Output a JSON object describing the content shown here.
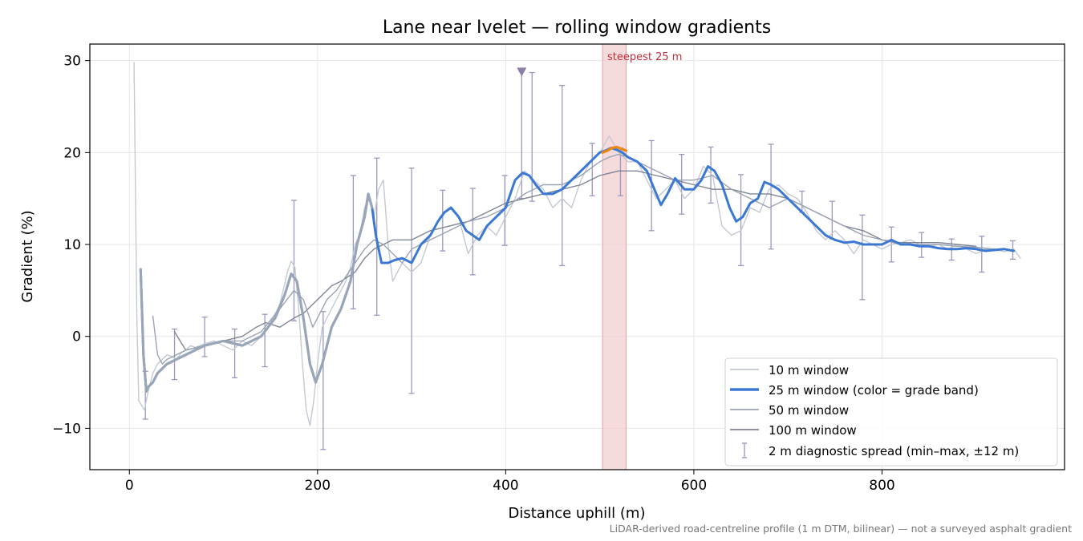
{
  "chart_data": {
    "type": "line",
    "title": "Lane near Ivelet — rolling window gradients",
    "xlabel": "Distance uphill (m)",
    "ylabel": "Gradient (%)",
    "xlim": [
      -42,
      994
    ],
    "ylim": [
      -14.5,
      31.8
    ],
    "xticks": [
      0,
      200,
      400,
      600,
      800
    ],
    "yticks": [
      -10,
      0,
      10,
      20,
      30
    ],
    "ytick_labels": [
      "−10",
      "0",
      "10",
      "20",
      "30"
    ],
    "grid": true,
    "legend_position": "lower right",
    "footnote": "LiDAR-derived road-centreline profile (1 m DTM, bilinear) — not a surveyed asphalt gradient",
    "annotation": {
      "text": "steepest 25 m",
      "x_start": 503,
      "x_end": 528
    },
    "colors": {
      "w10": "#c3c9d3",
      "w25": "#3a78d3",
      "w25_steepest": "#e8880f",
      "w50": "#9ba3b3",
      "w100": "#7e8594",
      "errorbar": "#9b98bd",
      "span": "#f2cccf",
      "annotation": "#c0303a",
      "marker": "#8e7fa6",
      "footnote": "#777777"
    },
    "series": [
      {
        "name": "10 m window",
        "x": [
          5,
          8,
          10,
          13,
          16,
          20,
          25,
          30,
          35,
          40,
          45,
          50,
          55,
          60,
          65,
          70,
          80,
          90,
          100,
          110,
          120,
          130,
          140,
          150,
          160,
          168,
          172,
          176,
          180,
          184,
          188,
          192,
          196,
          200,
          205,
          210,
          220,
          230,
          235,
          240,
          245,
          250,
          255,
          260,
          265,
          270,
          275,
          280,
          290,
          300,
          310,
          320,
          330,
          340,
          350,
          360,
          370,
          380,
          390,
          400,
          410,
          420,
          430,
          440,
          450,
          460,
          470,
          480,
          490,
          500,
          510,
          520,
          530,
          540,
          550,
          560,
          570,
          580,
          590,
          600,
          610,
          620,
          630,
          640,
          650,
          660,
          670,
          680,
          690,
          700,
          710,
          720,
          730,
          740,
          750,
          760,
          770,
          780,
          790,
          800,
          810,
          820,
          830,
          840,
          850,
          860,
          870,
          880,
          890,
          900,
          910,
          920,
          930,
          940,
          947
        ],
        "y": [
          29.8,
          2,
          -7,
          -7.5,
          -8,
          -6,
          -4,
          -3,
          -2.5,
          -2,
          -2.2,
          -2.5,
          -1.8,
          -1.5,
          -1,
          -1.2,
          -0.8,
          -0.5,
          -1,
          -1.5,
          -0.5,
          -1,
          0,
          1.5,
          3.5,
          7,
          8.2,
          7.5,
          3,
          -3,
          -8,
          -9.7,
          -7,
          -3,
          1,
          2,
          4,
          6,
          7.5,
          10,
          11,
          14,
          15,
          13,
          16,
          17,
          10,
          6,
          8,
          7,
          8,
          11,
          13,
          14,
          13,
          9,
          11,
          12,
          11,
          13,
          15,
          18,
          17,
          16,
          14,
          15,
          14,
          17,
          19,
          20,
          21.8,
          20,
          19,
          19,
          17,
          15,
          16,
          17,
          15,
          16,
          18.5,
          17.5,
          12,
          11,
          11.5,
          14,
          13.5,
          16,
          16.5,
          15.5,
          15,
          13.5,
          11.5,
          10.5,
          11.5,
          10.5,
          9,
          10.5,
          10,
          9.5,
          10,
          10.2,
          10.5,
          10,
          9.8,
          10,
          9.5,
          10,
          9.5,
          9,
          9.5,
          9.5,
          9.2,
          9.5,
          8.5
        ]
      },
      {
        "name": "25 m window (color = grade band)",
        "x": [
          12,
          15,
          18,
          20,
          25,
          30,
          40,
          50,
          60,
          80,
          100,
          120,
          140,
          155,
          165,
          172,
          178,
          185,
          192,
          198,
          205,
          215,
          225,
          235,
          242,
          250,
          254,
          258,
          262,
          268,
          275,
          282,
          290,
          300,
          310,
          320,
          328,
          335,
          342,
          350,
          358,
          365,
          372,
          380,
          390,
          400,
          405,
          410,
          418,
          425,
          432,
          440,
          450,
          460,
          470,
          480,
          490,
          500,
          506,
          512,
          518,
          524,
          530,
          540,
          550,
          558,
          565,
          572,
          580,
          590,
          600,
          608,
          615,
          622,
          630,
          638,
          645,
          652,
          660,
          668,
          675,
          682,
          690,
          700,
          710,
          720,
          730,
          740,
          750,
          760,
          770,
          780,
          790,
          800,
          810,
          820,
          830,
          840,
          850,
          860,
          870,
          880,
          890,
          900,
          910,
          920,
          930,
          940
        ],
        "y": [
          7.3,
          -2,
          -6,
          -5.5,
          -5,
          -4,
          -3,
          -2.5,
          -2,
          -1,
          -0.5,
          -1,
          0,
          2,
          4.5,
          6.8,
          6,
          2,
          -3,
          -5,
          -3,
          1,
          3,
          6,
          10,
          13,
          15.5,
          14,
          11,
          8,
          8,
          8.3,
          8.5,
          8,
          10,
          11,
          12.5,
          13.5,
          14,
          13,
          11.5,
          11,
          10.5,
          12,
          13,
          14,
          15.5,
          17,
          17.8,
          17.5,
          16.5,
          15.5,
          15.5,
          16,
          17,
          18,
          19,
          20,
          20.2,
          20.5,
          20.3,
          20,
          19.5,
          19,
          18,
          16,
          14.3,
          15.5,
          17.2,
          16,
          16,
          17,
          18.5,
          18,
          16.5,
          14,
          12.5,
          13,
          14.5,
          15,
          16.8,
          16.5,
          16,
          15,
          14,
          13,
          12,
          11,
          10.5,
          10.2,
          10.3,
          10,
          10,
          10,
          10.5,
          10,
          10,
          9.8,
          9.8,
          9.6,
          9.5,
          9.5,
          9.6,
          9.5,
          9.3,
          9.4,
          9.5,
          9.3
        ]
      },
      {
        "name": "50 m window",
        "x": [
          25,
          30,
          35,
          40,
          50,
          60,
          80,
          100,
          120,
          140,
          160,
          175,
          185,
          195,
          200,
          210,
          220,
          230,
          240,
          250,
          260,
          270,
          280,
          290,
          300,
          320,
          340,
          360,
          380,
          400,
          420,
          440,
          460,
          480,
          500,
          510,
          520,
          530,
          540,
          560,
          580,
          600,
          620,
          640,
          660,
          680,
          700,
          720,
          740,
          760,
          780,
          800,
          820,
          840,
          860,
          880,
          900,
          920,
          940
        ],
        "y": [
          2.2,
          -2,
          -3,
          -2.5,
          -2,
          -1.5,
          -1,
          -0.5,
          -0.5,
          0.5,
          3,
          5,
          4,
          1,
          2,
          4,
          5,
          6.5,
          8,
          9.5,
          10.5,
          10,
          9,
          8,
          9.5,
          10.5,
          11.5,
          12.5,
          13,
          14,
          15.5,
          16.5,
          16.5,
          17.5,
          19,
          19.5,
          19.8,
          19.5,
          19,
          18,
          17,
          17,
          17.5,
          16,
          15,
          14,
          15,
          14,
          13,
          12,
          11,
          10.5,
          10,
          10,
          10,
          9.8,
          9.7,
          9.5,
          9.4
        ]
      },
      {
        "name": "100 m window",
        "x": [
          48,
          60,
          80,
          100,
          120,
          135,
          145,
          160,
          175,
          185,
          195,
          205,
          215,
          225,
          240,
          250,
          260,
          280,
          300,
          320,
          340,
          360,
          380,
          400,
          420,
          440,
          460,
          480,
          500,
          520,
          540,
          560,
          580,
          600,
          620,
          640,
          660,
          680,
          700,
          720,
          740,
          760,
          780,
          800,
          820,
          840,
          860,
          880,
          900
        ],
        "y": [
          0.5,
          -1.5,
          -1,
          -0.5,
          0,
          1,
          1.5,
          1,
          2,
          2.5,
          3.5,
          4.5,
          5.5,
          6,
          7,
          8.5,
          9.5,
          10.5,
          10.5,
          11.5,
          12,
          12.5,
          13.5,
          14.5,
          15,
          15.5,
          16,
          16.5,
          17.5,
          18,
          18,
          17.5,
          17,
          16.5,
          16,
          16,
          15.5,
          15.5,
          15,
          14,
          13,
          12,
          11.5,
          10.5,
          10.2,
          10.2,
          10.2,
          10,
          9.8
        ]
      }
    ],
    "steepest_segment": {
      "x": [
        503,
        508,
        513,
        518,
        523,
        528
      ],
      "y": [
        20,
        20.2,
        20.5,
        20.6,
        20.4,
        20.2
      ]
    },
    "diagnostic_spread": {
      "name": "2 m diagnostic spread (min–max, ±12 m)",
      "x": [
        17,
        48,
        80,
        112,
        144,
        175,
        206,
        238,
        263,
        300,
        333,
        365,
        399,
        417,
        428,
        460,
        492,
        522,
        555,
        587,
        618,
        650,
        682,
        715,
        747,
        779,
        810,
        842,
        874,
        906,
        939
      ],
      "lo": [
        -9,
        -4.7,
        -2.2,
        -4.5,
        -3.3,
        1.7,
        -12.3,
        3,
        2.3,
        -6.2,
        9.3,
        6.7,
        9.9,
        15,
        14.7,
        7.7,
        15.3,
        15.3,
        11.5,
        13.3,
        14.5,
        7.7,
        9.5,
        13.5,
        10.6,
        4,
        8.1,
        8.6,
        8.3,
        7,
        8.4
      ],
      "hi": [
        -3.8,
        0.8,
        2.1,
        0.8,
        2.4,
        14.8,
        2.7,
        17.5,
        19.4,
        18.3,
        15.9,
        16.1,
        17.5,
        28.8,
        28.7,
        27.3,
        21,
        20.5,
        21.3,
        19.8,
        20.6,
        17.6,
        20.9,
        15.8,
        14.7,
        13.2,
        11.9,
        11.3,
        10.6,
        10.9,
        10.4
      ]
    },
    "marker": {
      "x": 417,
      "y": 28.8,
      "shape": "triangle-down"
    }
  }
}
